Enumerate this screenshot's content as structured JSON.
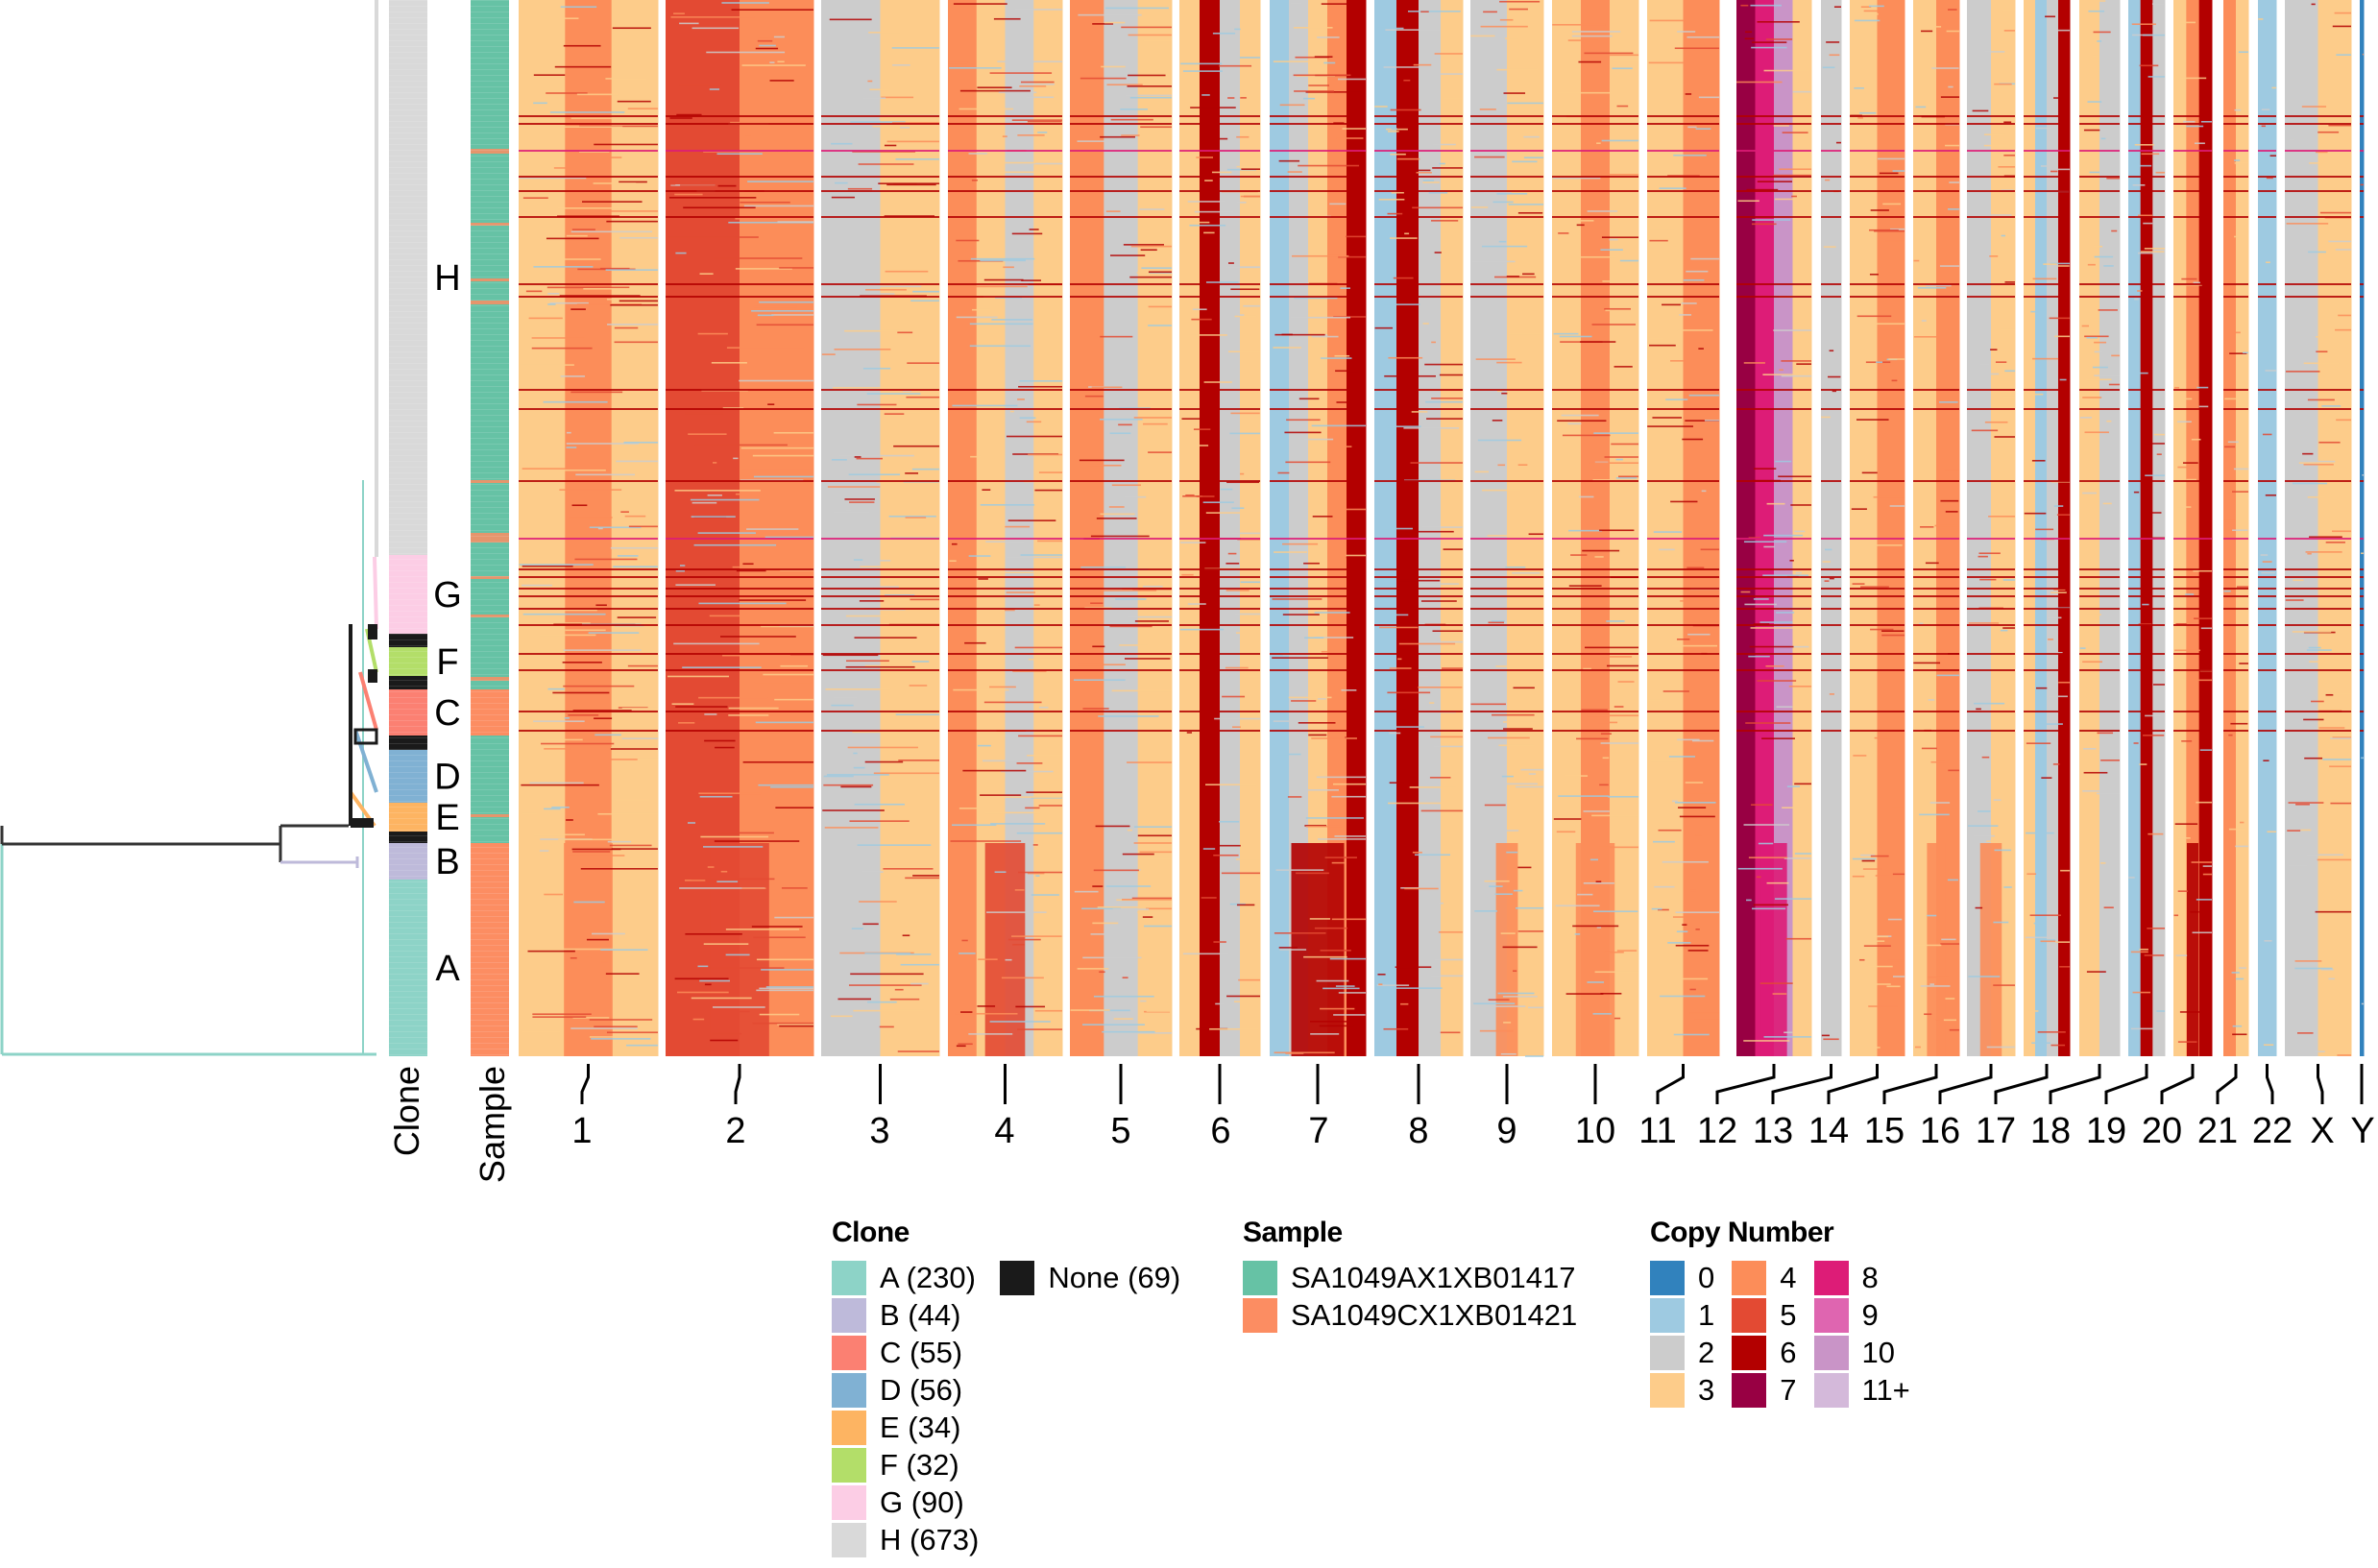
{
  "chart_data": {
    "type": "heatmap",
    "title": "",
    "xlabel": "",
    "ylabel": "",
    "annotation_columns": [
      "Clone",
      "Sample"
    ],
    "chromosomes": [
      "1",
      "2",
      "3",
      "4",
      "5",
      "6",
      "7",
      "8",
      "9",
      "10",
      "11",
      "12",
      "13",
      "14",
      "15",
      "16",
      "17",
      "18",
      "19",
      "20",
      "21",
      "22",
      "X",
      "Y"
    ],
    "clone_order_top_to_bottom": [
      {
        "label": "H",
        "count": 673
      },
      {
        "label": "G",
        "count": 90
      },
      {
        "label": "None",
        "count": 69,
        "segment": 1
      },
      {
        "label": "F",
        "count": 32
      },
      {
        "label": "None",
        "count": 69,
        "segment": 2
      },
      {
        "label": "C",
        "count": 55
      },
      {
        "label": "None",
        "count": 69,
        "segment": 3
      },
      {
        "label": "D",
        "count": 56
      },
      {
        "label": "E",
        "count": 34
      },
      {
        "label": "None",
        "count": 69,
        "segment": 4
      },
      {
        "label": "B",
        "count": 44
      },
      {
        "label": "A",
        "count": 230
      }
    ],
    "clone_row_labels": [
      "H",
      "G",
      "F",
      "C",
      "D",
      "E",
      "B",
      "A"
    ],
    "dominant_copy_number_by_chromosome": {
      "1": [
        3,
        4,
        3
      ],
      "2": [
        5,
        4
      ],
      "3": [
        2,
        3
      ],
      "4": [
        4,
        3,
        2,
        3
      ],
      "5": [
        4,
        2,
        3
      ],
      "6": [
        3,
        6,
        2,
        3
      ],
      "7": [
        1,
        2,
        3,
        4,
        6
      ],
      "8": [
        1,
        6,
        2,
        3
      ],
      "9": [
        2,
        3
      ],
      "10": [
        3,
        4,
        3
      ],
      "11": [
        3,
        4
      ],
      "12": [
        7,
        8,
        10,
        3
      ],
      "13": [
        2
      ],
      "14": [
        3,
        4
      ],
      "15": [
        3,
        4
      ],
      "16": [
        2,
        3
      ],
      "17": [
        3,
        1,
        2,
        6
      ],
      "18": [
        3,
        2
      ],
      "19": [
        1,
        6,
        2
      ],
      "20": [
        3,
        4,
        6
      ],
      "21": [
        4,
        3
      ],
      "22": [
        1
      ],
      "X": [
        2,
        3
      ],
      "Y": [
        0
      ]
    },
    "sample_segments_top_to_bottom": [
      "SA1049AX1XB01417",
      "SA1049CX1XB01421",
      "SA1049AX1XB01417",
      "SA1049CX1XB01421",
      "SA1049AX1XB01417",
      "SA1049CX1XB01421",
      "SA1049AX1XB01417",
      "SA1049CX1XB01421"
    ]
  },
  "axis": {
    "clone_label": "Clone",
    "sample_label": "Sample"
  },
  "legends": {
    "clone": {
      "title": "Clone",
      "items": [
        {
          "label": "A (230)",
          "color": "#8dd3c7"
        },
        {
          "label": "B (44)",
          "color": "#bebada"
        },
        {
          "label": "C (55)",
          "color": "#fb8072"
        },
        {
          "label": "D (56)",
          "color": "#80b1d3"
        },
        {
          "label": "E (34)",
          "color": "#fdb462"
        },
        {
          "label": "F (32)",
          "color": "#b3de69"
        },
        {
          "label": "G (90)",
          "color": "#fccde5"
        },
        {
          "label": "H (673)",
          "color": "#d9d9d9"
        },
        {
          "label": "None (69)",
          "color": "#1a1a1a"
        }
      ]
    },
    "sample": {
      "title": "Sample",
      "items": [
        {
          "label": "SA1049AX1XB01417",
          "color": "#66c2a5"
        },
        {
          "label": "SA1049CX1XB01421",
          "color": "#fc8d62"
        }
      ]
    },
    "copy_number": {
      "title": "Copy Number",
      "items": [
        {
          "label": "0",
          "color": "#3182bd"
        },
        {
          "label": "1",
          "color": "#9ecae1"
        },
        {
          "label": "2",
          "color": "#cccccc"
        },
        {
          "label": "3",
          "color": "#fdcc8a"
        },
        {
          "label": "4",
          "color": "#fc8d59"
        },
        {
          "label": "5",
          "color": "#e34a33"
        },
        {
          "label": "6",
          "color": "#b30000"
        },
        {
          "label": "7",
          "color": "#980043"
        },
        {
          "label": "8",
          "color": "#dd1c77"
        },
        {
          "label": "9",
          "color": "#df65b0"
        },
        {
          "label": "10",
          "color": "#c994c7"
        },
        {
          "label": "11+",
          "color": "#d4b9da"
        }
      ]
    }
  }
}
